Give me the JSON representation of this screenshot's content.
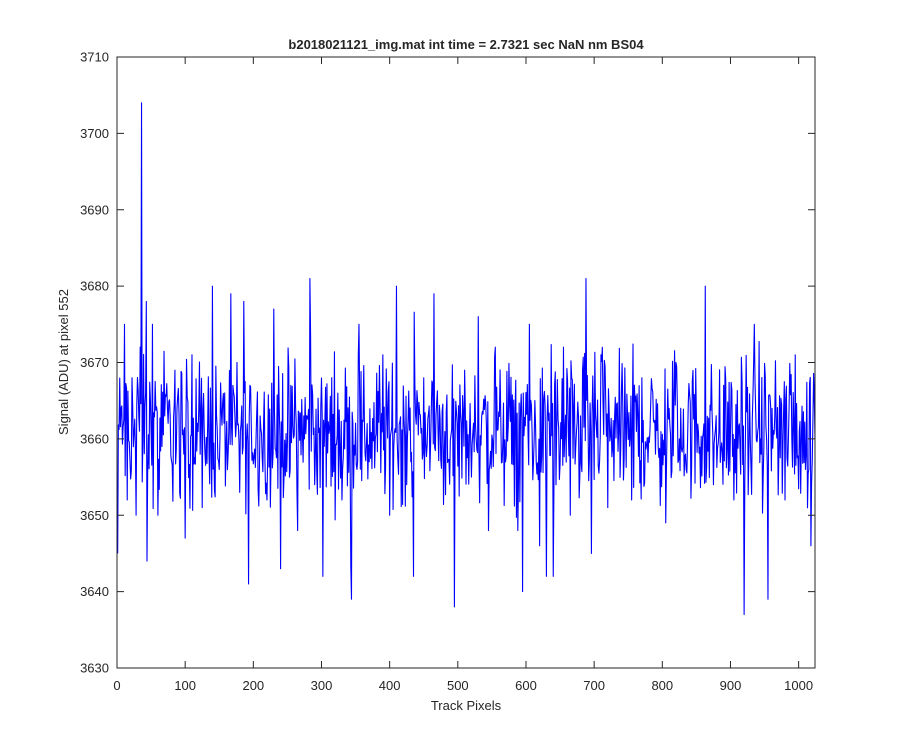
{
  "chart_data": {
    "type": "line",
    "title": "b2018021121_img.mat int time = 2.7321 sec  NaN nm BS04",
    "xlabel": "Track Pixels",
    "ylabel": "Signal (ADU) at pixel 552",
    "xlim": [
      0,
      1024
    ],
    "ylim": [
      3630,
      3710
    ],
    "xticks": [
      0,
      100,
      200,
      300,
      400,
      500,
      600,
      700,
      800,
      900,
      1000
    ],
    "yticks": [
      3630,
      3640,
      3650,
      3660,
      3670,
      3680,
      3690,
      3700,
      3710
    ],
    "grid": false,
    "legend": "none",
    "series_color": "#0000ff",
    "series": [
      {
        "x_start": 1,
        "x_step": 1,
        "count": 1024,
        "mean_approx": 3661,
        "range_approx": [
          3637,
          3704
        ],
        "values_sampled": [
          {
            "x": 1,
            "y": 3645
          },
          {
            "x": 6,
            "y": 3664
          },
          {
            "x": 11,
            "y": 3675
          },
          {
            "x": 15,
            "y": 3652
          },
          {
            "x": 22,
            "y": 3668
          },
          {
            "x": 28,
            "y": 3650
          },
          {
            "x": 34,
            "y": 3672
          },
          {
            "x": 36,
            "y": 3704
          },
          {
            "x": 38,
            "y": 3660
          },
          {
            "x": 43,
            "y": 3678
          },
          {
            "x": 44,
            "y": 3644
          },
          {
            "x": 52,
            "y": 3675
          },
          {
            "x": 60,
            "y": 3650
          },
          {
            "x": 70,
            "y": 3663
          },
          {
            "x": 85,
            "y": 3669
          },
          {
            "x": 100,
            "y": 3647
          },
          {
            "x": 110,
            "y": 3671
          },
          {
            "x": 125,
            "y": 3651
          },
          {
            "x": 140,
            "y": 3680
          },
          {
            "x": 150,
            "y": 3656
          },
          {
            "x": 170,
            "y": 3667
          },
          {
            "x": 180,
            "y": 3653
          },
          {
            "x": 186,
            "y": 3678
          },
          {
            "x": 193,
            "y": 3641
          },
          {
            "x": 210,
            "y": 3663
          },
          {
            "x": 220,
            "y": 3652
          },
          {
            "x": 230,
            "y": 3677
          },
          {
            "x": 240,
            "y": 3643
          },
          {
            "x": 255,
            "y": 3667
          },
          {
            "x": 265,
            "y": 3648
          },
          {
            "x": 275,
            "y": 3660
          },
          {
            "x": 283,
            "y": 3681
          },
          {
            "x": 290,
            "y": 3654
          },
          {
            "x": 302,
            "y": 3642
          },
          {
            "x": 315,
            "y": 3668
          },
          {
            "x": 330,
            "y": 3652
          },
          {
            "x": 344,
            "y": 3639
          },
          {
            "x": 355,
            "y": 3675
          },
          {
            "x": 370,
            "y": 3657
          },
          {
            "x": 390,
            "y": 3671
          },
          {
            "x": 400,
            "y": 3650
          },
          {
            "x": 410,
            "y": 3680
          },
          {
            "x": 425,
            "y": 3654
          },
          {
            "x": 435,
            "y": 3642
          },
          {
            "x": 450,
            "y": 3668
          },
          {
            "x": 465,
            "y": 3679
          },
          {
            "x": 480,
            "y": 3658
          },
          {
            "x": 495,
            "y": 3638
          },
          {
            "x": 510,
            "y": 3669
          },
          {
            "x": 520,
            "y": 3655
          },
          {
            "x": 530,
            "y": 3676
          },
          {
            "x": 545,
            "y": 3648
          },
          {
            "x": 555,
            "y": 3672
          },
          {
            "x": 570,
            "y": 3657
          },
          {
            "x": 588,
            "y": 3648
          },
          {
            "x": 595,
            "y": 3640
          },
          {
            "x": 605,
            "y": 3675
          },
          {
            "x": 620,
            "y": 3646
          },
          {
            "x": 630,
            "y": 3642
          },
          {
            "x": 640,
            "y": 3642
          },
          {
            "x": 655,
            "y": 3672
          },
          {
            "x": 665,
            "y": 3650
          },
          {
            "x": 680,
            "y": 3663
          },
          {
            "x": 688,
            "y": 3681
          },
          {
            "x": 696,
            "y": 3645
          },
          {
            "x": 710,
            "y": 3671
          },
          {
            "x": 720,
            "y": 3651
          },
          {
            "x": 740,
            "y": 3666
          },
          {
            "x": 755,
            "y": 3652
          },
          {
            "x": 770,
            "y": 3668
          },
          {
            "x": 790,
            "y": 3658
          },
          {
            "x": 805,
            "y": 3649
          },
          {
            "x": 820,
            "y": 3670
          },
          {
            "x": 835,
            "y": 3656
          },
          {
            "x": 850,
            "y": 3663
          },
          {
            "x": 863,
            "y": 3680
          },
          {
            "x": 875,
            "y": 3654
          },
          {
            "x": 890,
            "y": 3667
          },
          {
            "x": 905,
            "y": 3652
          },
          {
            "x": 920,
            "y": 3637
          },
          {
            "x": 935,
            "y": 3675
          },
          {
            "x": 945,
            "y": 3658
          },
          {
            "x": 955,
            "y": 3639
          },
          {
            "x": 965,
            "y": 3663
          },
          {
            "x": 980,
            "y": 3652
          },
          {
            "x": 995,
            "y": 3671
          },
          {
            "x": 1010,
            "y": 3656
          },
          {
            "x": 1018,
            "y": 3646
          },
          {
            "x": 1024,
            "y": 3660
          }
        ]
      }
    ]
  }
}
